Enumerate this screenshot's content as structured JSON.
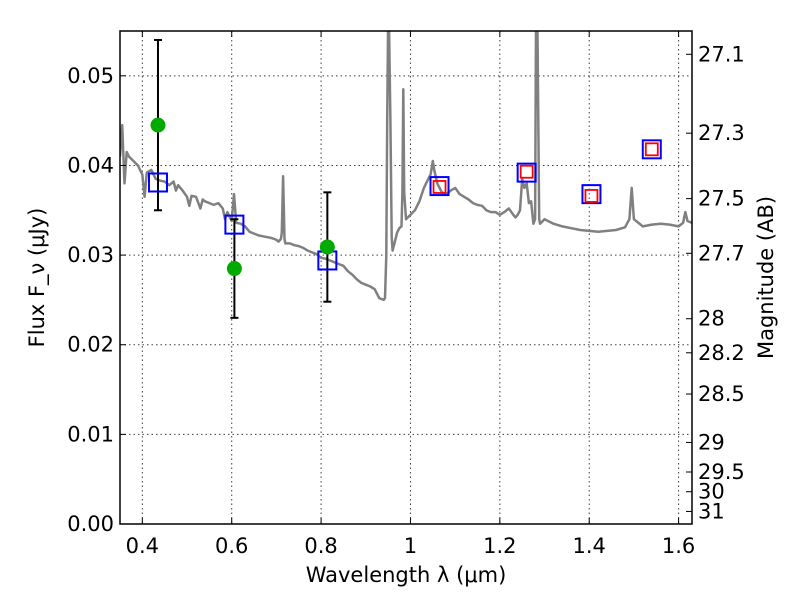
{
  "chart_data": {
    "type": "scatter",
    "xlabel": "Wavelength λ (μm)",
    "ylabel": "Flux F_ν (μJy)",
    "ylabel_right": "Magnitude (AB)",
    "xlim": [
      0.35,
      1.63
    ],
    "ylim": [
      0.0,
      0.055
    ],
    "grid": true,
    "x_ticks": [
      {
        "value": 0.4,
        "label": "0.4"
      },
      {
        "value": 0.6,
        "label": "0.6"
      },
      {
        "value": 0.8,
        "label": "0.8"
      },
      {
        "value": 1.0,
        "label": "1"
      },
      {
        "value": 1.2,
        "label": "1.2"
      },
      {
        "value": 1.4,
        "label": "1.4"
      },
      {
        "value": 1.6,
        "label": "1.6"
      }
    ],
    "y_ticks": [
      {
        "value": 0.0,
        "label": "0.00"
      },
      {
        "value": 0.01,
        "label": "0.01"
      },
      {
        "value": 0.02,
        "label": "0.02"
      },
      {
        "value": 0.03,
        "label": "0.03"
      },
      {
        "value": 0.04,
        "label": "0.04"
      },
      {
        "value": 0.05,
        "label": "0.05"
      }
    ],
    "right_ticks": [
      {
        "label": "27.1",
        "flux": 0.0524
      },
      {
        "label": "27.3",
        "flux": 0.0436
      },
      {
        "label": "27.5",
        "flux": 0.0363
      },
      {
        "label": "27.7",
        "flux": 0.0302
      },
      {
        "label": "28",
        "flux": 0.0229
      },
      {
        "label": "28.2",
        "flux": 0.0191
      },
      {
        "label": "28.5",
        "flux": 0.0145
      },
      {
        "label": "29",
        "flux": 0.0091
      },
      {
        "label": "29.5",
        "flux": 0.0058
      },
      {
        "label": "30",
        "flux": 0.0036
      },
      {
        "label": "31",
        "flux": 0.0014
      }
    ],
    "series": [
      {
        "name": "model spectrum",
        "kind": "line",
        "color": "#808080",
        "points": [
          [
            0.35,
            0.041
          ],
          [
            0.355,
            0.0445
          ],
          [
            0.36,
            0.038
          ],
          [
            0.365,
            0.0415
          ],
          [
            0.37,
            0.041
          ],
          [
            0.38,
            0.0405
          ],
          [
            0.39,
            0.04
          ],
          [
            0.4,
            0.039
          ],
          [
            0.405,
            0.0365
          ],
          [
            0.41,
            0.0392
          ],
          [
            0.42,
            0.0395
          ],
          [
            0.43,
            0.0385
          ],
          [
            0.44,
            0.0383
          ],
          [
            0.45,
            0.0382
          ],
          [
            0.46,
            0.0378
          ],
          [
            0.47,
            0.0382
          ],
          [
            0.475,
            0.0372
          ],
          [
            0.48,
            0.0378
          ],
          [
            0.49,
            0.0372
          ],
          [
            0.5,
            0.0365
          ],
          [
            0.505,
            0.0355
          ],
          [
            0.51,
            0.0366
          ],
          [
            0.52,
            0.0365
          ],
          [
            0.53,
            0.0352
          ],
          [
            0.535,
            0.0362
          ],
          [
            0.54,
            0.036
          ],
          [
            0.55,
            0.0358
          ],
          [
            0.56,
            0.0356
          ],
          [
            0.57,
            0.0358
          ],
          [
            0.58,
            0.0352
          ],
          [
            0.585,
            0.034
          ],
          [
            0.59,
            0.0348
          ],
          [
            0.6,
            0.0338
          ],
          [
            0.605,
            0.0368
          ],
          [
            0.61,
            0.0336
          ],
          [
            0.62,
            0.0335
          ],
          [
            0.63,
            0.0332
          ],
          [
            0.64,
            0.0326
          ],
          [
            0.65,
            0.0324
          ],
          [
            0.66,
            0.0322
          ],
          [
            0.67,
            0.0321
          ],
          [
            0.68,
            0.032
          ],
          [
            0.69,
            0.0319
          ],
          [
            0.7,
            0.0317
          ],
          [
            0.705,
            0.0315
          ],
          [
            0.71,
            0.0318
          ],
          [
            0.712,
            0.0325
          ],
          [
            0.715,
            0.0388
          ],
          [
            0.718,
            0.0318
          ],
          [
            0.72,
            0.0313
          ],
          [
            0.73,
            0.0313
          ],
          [
            0.74,
            0.0311
          ],
          [
            0.75,
            0.031
          ],
          [
            0.76,
            0.0308
          ],
          [
            0.77,
            0.0305
          ],
          [
            0.78,
            0.0303
          ],
          [
            0.79,
            0.0301
          ],
          [
            0.8,
            0.0297
          ],
          [
            0.81,
            0.0296
          ],
          [
            0.82,
            0.0294
          ],
          [
            0.83,
            0.0292
          ],
          [
            0.84,
            0.029
          ],
          [
            0.85,
            0.0288
          ],
          [
            0.86,
            0.0282
          ],
          [
            0.87,
            0.0278
          ],
          [
            0.88,
            0.0273
          ],
          [
            0.89,
            0.0269
          ],
          [
            0.9,
            0.0267
          ],
          [
            0.91,
            0.0265
          ],
          [
            0.92,
            0.0262
          ],
          [
            0.93,
            0.0252
          ],
          [
            0.94,
            0.025
          ],
          [
            0.943,
            0.0252
          ],
          [
            0.946,
            0.03
          ],
          [
            0.948,
            0.045
          ],
          [
            0.95,
            0.0559
          ],
          [
            0.952,
            0.0559
          ],
          [
            0.955,
            0.045
          ],
          [
            0.958,
            0.032
          ],
          [
            0.96,
            0.0305
          ],
          [
            0.97,
            0.0325
          ],
          [
            0.975,
            0.033
          ],
          [
            0.98,
            0.0332
          ],
          [
            0.982,
            0.037
          ],
          [
            0.984,
            0.0485
          ],
          [
            0.986,
            0.037
          ],
          [
            0.99,
            0.034
          ],
          [
            1.0,
            0.0345
          ],
          [
            1.01,
            0.035
          ],
          [
            1.02,
            0.036
          ],
          [
            1.03,
            0.0375
          ],
          [
            1.04,
            0.0385
          ],
          [
            1.045,
            0.039
          ],
          [
            1.05,
            0.0405
          ],
          [
            1.053,
            0.0395
          ],
          [
            1.06,
            0.038
          ],
          [
            1.07,
            0.037
          ],
          [
            1.08,
            0.0368
          ],
          [
            1.09,
            0.0372
          ],
          [
            1.1,
            0.0375
          ],
          [
            1.11,
            0.0368
          ],
          [
            1.12,
            0.0365
          ],
          [
            1.13,
            0.0362
          ],
          [
            1.14,
            0.0358
          ],
          [
            1.15,
            0.0356
          ],
          [
            1.16,
            0.0355
          ],
          [
            1.17,
            0.035
          ],
          [
            1.18,
            0.0348
          ],
          [
            1.19,
            0.0348
          ],
          [
            1.2,
            0.0345
          ],
          [
            1.21,
            0.0348
          ],
          [
            1.22,
            0.0352
          ],
          [
            1.23,
            0.0345
          ],
          [
            1.235,
            0.0342
          ],
          [
            1.24,
            0.0345
          ],
          [
            1.245,
            0.035
          ],
          [
            1.25,
            0.0385
          ],
          [
            1.255,
            0.0375
          ],
          [
            1.26,
            0.038
          ],
          [
            1.265,
            0.0358
          ],
          [
            1.27,
            0.036
          ],
          [
            1.275,
            0.0335
          ],
          [
            1.279,
            0.034
          ],
          [
            1.281,
            0.0559
          ],
          [
            1.284,
            0.0559
          ],
          [
            1.288,
            0.034
          ],
          [
            1.29,
            0.0335
          ],
          [
            1.3,
            0.034
          ],
          [
            1.32,
            0.0335
          ],
          [
            1.34,
            0.0332
          ],
          [
            1.36,
            0.033
          ],
          [
            1.38,
            0.0328
          ],
          [
            1.4,
            0.0327
          ],
          [
            1.42,
            0.0326
          ],
          [
            1.44,
            0.0327
          ],
          [
            1.46,
            0.0328
          ],
          [
            1.48,
            0.0331
          ],
          [
            1.49,
            0.034
          ],
          [
            1.495,
            0.0375
          ],
          [
            1.5,
            0.034
          ],
          [
            1.52,
            0.0332
          ],
          [
            1.54,
            0.0334
          ],
          [
            1.56,
            0.0335
          ],
          [
            1.58,
            0.0334
          ],
          [
            1.6,
            0.0332
          ],
          [
            1.61,
            0.0336
          ],
          [
            1.615,
            0.0348
          ],
          [
            1.62,
            0.0338
          ],
          [
            1.63,
            0.0336
          ]
        ]
      },
      {
        "name": "observed photometry",
        "kind": "errorbar",
        "color": "#00aa00",
        "points": [
          {
            "x": 0.435,
            "y": 0.0445,
            "ylo": 0.035,
            "yhi": 0.054
          },
          {
            "x": 0.606,
            "y": 0.0285,
            "ylo": 0.023,
            "yhi": 0.034
          },
          {
            "x": 0.814,
            "y": 0.0309,
            "ylo": 0.0248,
            "yhi": 0.037
          }
        ]
      },
      {
        "name": "model photometry",
        "kind": "square",
        "color": "#0000ff",
        "points": [
          {
            "x": 0.435,
            "y": 0.0381
          },
          {
            "x": 0.606,
            "y": 0.0334
          },
          {
            "x": 0.814,
            "y": 0.0294
          },
          {
            "x": 1.065,
            "y": 0.0377
          },
          {
            "x": 1.26,
            "y": 0.0392
          },
          {
            "x": 1.405,
            "y": 0.0368
          },
          {
            "x": 1.54,
            "y": 0.0418
          }
        ]
      },
      {
        "name": "red markers",
        "kind": "square",
        "color": "#ff0000",
        "points": [
          {
            "x": 1.065,
            "y": 0.0376
          },
          {
            "x": 1.26,
            "y": 0.0393
          },
          {
            "x": 1.405,
            "y": 0.0366
          },
          {
            "x": 1.54,
            "y": 0.0418
          }
        ]
      }
    ]
  }
}
